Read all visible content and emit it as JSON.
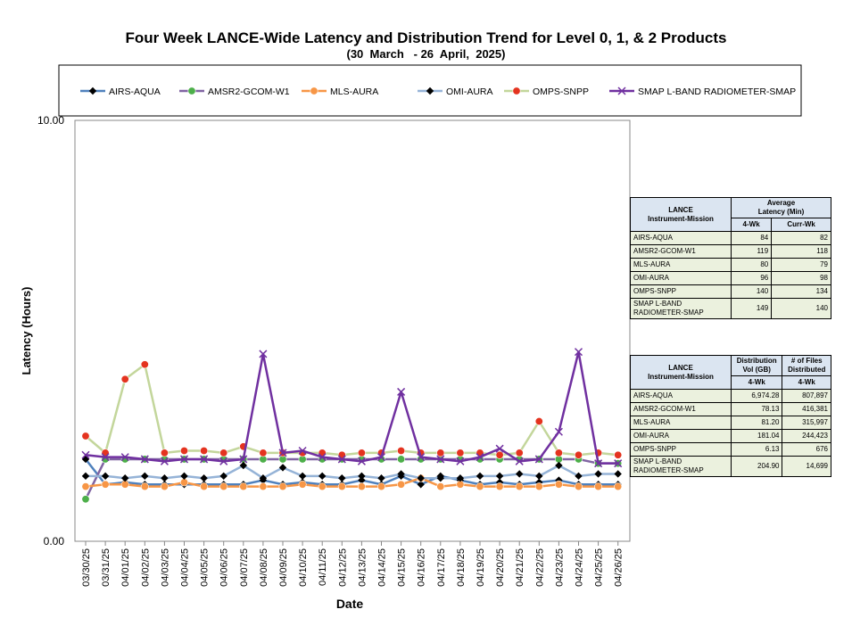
{
  "title": "Four Week LANCE-Wide Latency and Distribution Trend for Level 0, 1, & 2 Products",
  "subtitle": "(30  March   - 26  April,  2025)",
  "chart_data": {
    "type": "line",
    "xlabel": "Date",
    "ylabel": "Latency (Hours)",
    "ylim": [
      0,
      10
    ],
    "y_tick_labels": [
      "0.00",
      "10.00"
    ],
    "categories": [
      "03/30/25",
      "03/31/25",
      "04/01/25",
      "04/02/25",
      "04/03/25",
      "04/04/25",
      "04/05/25",
      "04/06/25",
      "04/07/25",
      "04/08/25",
      "04/09/25",
      "04/10/25",
      "04/11/25",
      "04/12/25",
      "04/13/25",
      "04/14/25",
      "04/15/25",
      "04/16/25",
      "04/17/25",
      "04/18/25",
      "04/19/25",
      "04/20/25",
      "04/21/25",
      "04/22/25",
      "04/23/25",
      "04/24/25",
      "04/25/25",
      "04/26/25"
    ],
    "series": [
      {
        "name": "AIRS-AQUA",
        "color": "#4f81bd",
        "marker": "diamond",
        "values": [
          1.95,
          1.35,
          1.4,
          1.35,
          1.35,
          1.35,
          1.35,
          1.35,
          1.35,
          1.45,
          1.35,
          1.4,
          1.35,
          1.35,
          1.45,
          1.35,
          1.55,
          1.35,
          1.55,
          1.45,
          1.35,
          1.4,
          1.35,
          1.4,
          1.45,
          1.35,
          1.35,
          1.35
        ]
      },
      {
        "name": "AMSR2-GCOM-W1",
        "color": "#8064a2",
        "marker": "circle",
        "values": [
          1.0,
          1.95,
          1.95,
          1.95,
          1.95,
          1.95,
          1.95,
          1.95,
          1.95,
          1.95,
          1.95,
          1.95,
          1.95,
          1.95,
          1.95,
          1.95,
          1.95,
          1.95,
          1.95,
          1.95,
          1.95,
          1.95,
          1.95,
          1.95,
          1.95,
          1.95,
          1.85,
          1.85
        ]
      },
      {
        "name": "MLS-AURA",
        "color": "#f79646",
        "marker": "circle",
        "values": [
          1.3,
          1.35,
          1.35,
          1.3,
          1.3,
          1.4,
          1.3,
          1.3,
          1.3,
          1.3,
          1.3,
          1.35,
          1.3,
          1.3,
          1.3,
          1.3,
          1.35,
          1.5,
          1.3,
          1.35,
          1.3,
          1.3,
          1.3,
          1.3,
          1.35,
          1.3,
          1.3,
          1.3
        ]
      },
      {
        "name": "OMI-AURA",
        "color": "#95b3d7",
        "marker": "diamond",
        "values": [
          1.55,
          1.55,
          1.5,
          1.55,
          1.5,
          1.55,
          1.5,
          1.55,
          1.8,
          1.5,
          1.75,
          1.55,
          1.55,
          1.5,
          1.55,
          1.5,
          1.6,
          1.5,
          1.5,
          1.5,
          1.55,
          1.55,
          1.6,
          1.55,
          1.8,
          1.55,
          1.6,
          1.6
        ]
      },
      {
        "name": "OMPS-SNPP",
        "color": "#c3d69b",
        "marker": "circle",
        "values": [
          2.5,
          2.1,
          3.85,
          4.2,
          2.1,
          2.15,
          2.15,
          2.1,
          2.25,
          2.1,
          2.1,
          2.1,
          2.1,
          2.05,
          2.1,
          2.1,
          2.15,
          2.1,
          2.1,
          2.1,
          2.1,
          2.05,
          2.1,
          2.85,
          2.1,
          2.05,
          2.1,
          2.05
        ]
      },
      {
        "name": "SMAP L-BAND RADIOMETER-SMAP",
        "color": "#7030a0",
        "marker": "x",
        "values": [
          2.05,
          2.0,
          2.0,
          1.95,
          1.9,
          1.95,
          1.95,
          1.9,
          1.95,
          4.45,
          2.1,
          2.15,
          2.0,
          1.95,
          1.9,
          2.0,
          3.55,
          2.0,
          1.95,
          1.9,
          2.0,
          2.2,
          1.9,
          1.95,
          2.6,
          4.5,
          1.85,
          1.85
        ]
      }
    ]
  },
  "latency_table": {
    "col1_header": "LANCE\nInstrument-Mission",
    "group_header": "Average\nLatency (Min)",
    "sub_headers": [
      "4-Wk",
      "Curr-Wk"
    ],
    "rows": [
      [
        "AIRS-AQUA",
        "84",
        "82"
      ],
      [
        "AMSR2-GCOM-W1",
        "119",
        "118"
      ],
      [
        "MLS-AURA",
        "80",
        "79"
      ],
      [
        "OMI-AURA",
        "96",
        "98"
      ],
      [
        "OMPS-SNPP",
        "140",
        "134"
      ],
      [
        "SMAP L-BAND RADIOMETER-SMAP",
        "149",
        "140"
      ]
    ]
  },
  "distribution_table": {
    "col1_header": "LANCE\nInstrument-Mission",
    "col2_header": "Distribution\nVol (GB)",
    "col3_header": "# of Files\nDistributed",
    "sub_headers": [
      "4-Wk",
      "4-Wk"
    ],
    "rows": [
      [
        "AIRS-AQUA",
        "6,974.28",
        "807,897"
      ],
      [
        "AMSR2-GCOM-W1",
        "78.13",
        "416,381"
      ],
      [
        "MLS-AURA",
        "81.20",
        "315,997"
      ],
      [
        "OMI-AURA",
        "181.04",
        "244,423"
      ],
      [
        "OMPS-SNPP",
        "6.13",
        "676"
      ],
      [
        "SMAP L-BAND RADIOMETER-SMAP",
        "204.90",
        "14,699"
      ]
    ]
  }
}
